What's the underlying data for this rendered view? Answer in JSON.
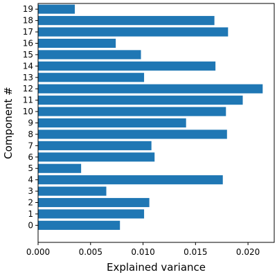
{
  "chart_data": {
    "type": "bar",
    "orientation": "horizontal",
    "title": "",
    "xlabel": "Explained variance",
    "ylabel": "Component #",
    "xlim": [
      0,
      0.0225
    ],
    "x_ticks": [
      0.0,
      0.005,
      0.01,
      0.015,
      0.02
    ],
    "x_tick_labels": [
      "0.000",
      "0.005",
      "0.010",
      "0.015",
      "0.020"
    ],
    "categories": [
      "0",
      "1",
      "2",
      "3",
      "4",
      "5",
      "6",
      "7",
      "8",
      "9",
      "10",
      "11",
      "12",
      "13",
      "14",
      "15",
      "16",
      "17",
      "18",
      "19"
    ],
    "values": [
      0.0078,
      0.0101,
      0.0106,
      0.0065,
      0.0176,
      0.0041,
      0.0111,
      0.0108,
      0.018,
      0.0141,
      0.0179,
      0.0195,
      0.0214,
      0.0101,
      0.0169,
      0.0098,
      0.0074,
      0.0181,
      0.0168,
      0.0035
    ],
    "bar_color": "#1f77b4",
    "grid": false,
    "legend": "none"
  }
}
